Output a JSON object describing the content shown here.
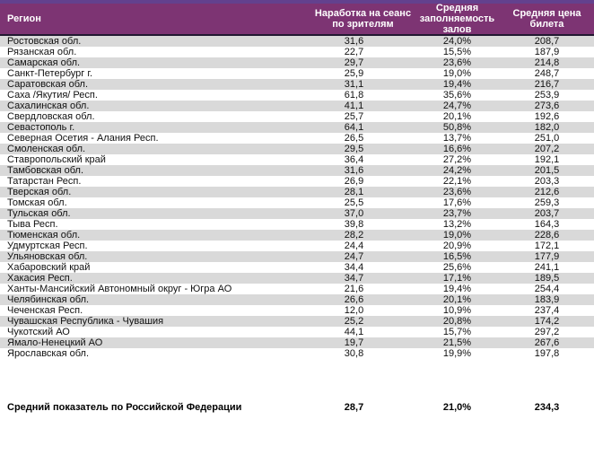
{
  "colors": {
    "header_background": "#7d3473",
    "top_strip": "#63418e",
    "header_text": "#ffffff",
    "row_stripe": "#d9d9d9",
    "row_plain": "#ffffff",
    "header_border_bottom": "#221831",
    "body_text": "#111111"
  },
  "table": {
    "columns": [
      {
        "key": "region",
        "label": "Регион"
      },
      {
        "key": "per_session",
        "label": "Наработка на сеанс по зрителям"
      },
      {
        "key": "occupancy",
        "label": "Средняя заполняемость залов"
      },
      {
        "key": "price",
        "label": "Средняя цена билета"
      }
    ],
    "rows": [
      {
        "region": "Ростовская обл.",
        "per_session": "31,6",
        "occupancy": "24,0%",
        "price": "208,7"
      },
      {
        "region": "Рязанская обл.",
        "per_session": "22,7",
        "occupancy": "15,5%",
        "price": "187,9"
      },
      {
        "region": "Самарская обл.",
        "per_session": "29,7",
        "occupancy": "23,6%",
        "price": "214,8"
      },
      {
        "region": "Санкт-Петербург г.",
        "per_session": "25,9",
        "occupancy": "19,0%",
        "price": "248,7"
      },
      {
        "region": "Саратовская обл.",
        "per_session": "31,1",
        "occupancy": "19,4%",
        "price": "216,7"
      },
      {
        "region": "Саха /Якутия/ Респ.",
        "per_session": "61,8",
        "occupancy": "35,6%",
        "price": "253,9"
      },
      {
        "region": "Сахалинская обл.",
        "per_session": "41,1",
        "occupancy": "24,7%",
        "price": "273,6"
      },
      {
        "region": "Свердловская обл.",
        "per_session": "25,7",
        "occupancy": "20,1%",
        "price": "192,6"
      },
      {
        "region": "Севастополь г.",
        "per_session": "64,1",
        "occupancy": "50,8%",
        "price": "182,0"
      },
      {
        "region": "Северная Осетия - Алания Респ.",
        "per_session": "26,5",
        "occupancy": "13,7%",
        "price": "251,0"
      },
      {
        "region": "Смоленская обл.",
        "per_session": "29,5",
        "occupancy": "16,6%",
        "price": "207,2"
      },
      {
        "region": "Ставропольский край",
        "per_session": "36,4",
        "occupancy": "27,2%",
        "price": "192,1"
      },
      {
        "region": "Тамбовская обл.",
        "per_session": "31,6",
        "occupancy": "24,2%",
        "price": "201,5"
      },
      {
        "region": "Татарстан Респ.",
        "per_session": "26,9",
        "occupancy": "22,1%",
        "price": "203,3"
      },
      {
        "region": "Тверская обл.",
        "per_session": "28,1",
        "occupancy": "23,6%",
        "price": "212,6"
      },
      {
        "region": "Томская обл.",
        "per_session": "25,5",
        "occupancy": "17,6%",
        "price": "259,3"
      },
      {
        "region": "Тульская обл.",
        "per_session": "37,0",
        "occupancy": "23,7%",
        "price": "203,7"
      },
      {
        "region": "Тыва Респ.",
        "per_session": "39,8",
        "occupancy": "13,2%",
        "price": "164,3"
      },
      {
        "region": "Тюменская обл.",
        "per_session": "28,2",
        "occupancy": "19,0%",
        "price": "228,6"
      },
      {
        "region": "Удмуртская Респ.",
        "per_session": "24,4",
        "occupancy": "20,9%",
        "price": "172,1"
      },
      {
        "region": "Ульяновская обл.",
        "per_session": "24,7",
        "occupancy": "16,5%",
        "price": "177,9"
      },
      {
        "region": "Хабаровский край",
        "per_session": "34,4",
        "occupancy": "25,6%",
        "price": "241,1"
      },
      {
        "region": "Хакасия Респ.",
        "per_session": "34,7",
        "occupancy": "17,1%",
        "price": "189,5"
      },
      {
        "region": "Ханты-Мансийский Автономный округ - Югра АО",
        "per_session": "21,6",
        "occupancy": "19,4%",
        "price": "254,4"
      },
      {
        "region": "Челябинская обл.",
        "per_session": "26,6",
        "occupancy": "20,1%",
        "price": "183,9"
      },
      {
        "region": "Чеченская Респ.",
        "per_session": "12,0",
        "occupancy": "10,9%",
        "price": "237,4"
      },
      {
        "region": "Чувашская Республика - Чувашия",
        "per_session": "25,2",
        "occupancy": "20,8%",
        "price": "174,2"
      },
      {
        "region": "Чукотский АО",
        "per_session": "44,1",
        "occupancy": "15,7%",
        "price": "297,2"
      },
      {
        "region": "Ямало-Ненецкий АО",
        "per_session": "19,7",
        "occupancy": "21,5%",
        "price": "267,6"
      },
      {
        "region": "Ярославская обл.",
        "per_session": "30,8",
        "occupancy": "19,9%",
        "price": "197,8"
      }
    ],
    "summary_row": {
      "region": "Средний показатель по Российской Федерации",
      "per_session": "28,7",
      "occupancy": "21,0%",
      "price": "234,3"
    }
  }
}
